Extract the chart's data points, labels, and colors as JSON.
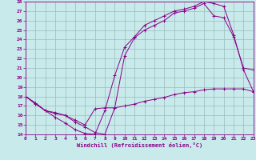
{
  "xlabel": "Windchill (Refroidissement éolien,°C)",
  "bg_color": "#c8eaea",
  "line_color": "#880088",
  "grid_color": "#99bbbb",
  "xmin": 0,
  "xmax": 23,
  "ymin": 14,
  "ymax": 28,
  "xticks": [
    0,
    1,
    2,
    3,
    4,
    5,
    6,
    7,
    8,
    9,
    10,
    11,
    12,
    13,
    14,
    15,
    16,
    17,
    18,
    19,
    20,
    21,
    22,
    23
  ],
  "yticks": [
    14,
    15,
    16,
    17,
    18,
    19,
    20,
    21,
    22,
    23,
    24,
    25,
    26,
    27,
    28
  ],
  "line1_x": [
    0,
    1,
    2,
    3,
    4,
    5,
    6,
    7,
    8,
    9,
    10,
    11,
    12,
    13,
    14,
    15,
    16,
    17,
    18,
    19,
    20,
    21,
    22,
    23
  ],
  "line1_y": [
    18,
    17.3,
    16.5,
    15.8,
    15.2,
    14.5,
    14.1,
    14.0,
    16.5,
    20.2,
    23.2,
    24.3,
    25.5,
    26.0,
    26.5,
    27.0,
    27.2,
    27.5,
    28.0,
    27.8,
    27.5,
    24.5,
    20.8,
    18.5
  ],
  "line2_x": [
    0,
    1,
    2,
    3,
    4,
    5,
    6,
    7,
    8,
    9,
    10,
    11,
    12,
    13,
    14,
    15,
    16,
    17,
    18,
    19,
    20,
    21,
    22,
    23
  ],
  "line2_y": [
    18,
    17.3,
    16.5,
    16.2,
    16.0,
    15.3,
    14.8,
    14.2,
    14.0,
    16.8,
    22.3,
    24.2,
    25.0,
    25.5,
    26.0,
    26.8,
    27.0,
    27.3,
    27.8,
    26.5,
    26.3,
    24.3,
    21.0,
    20.8
  ],
  "line3_x": [
    0,
    1,
    2,
    3,
    4,
    5,
    6,
    7,
    8,
    9,
    10,
    11,
    12,
    13,
    14,
    15,
    16,
    17,
    18,
    19,
    20,
    21,
    22,
    23
  ],
  "line3_y": [
    18,
    17.2,
    16.5,
    16.3,
    16.0,
    15.5,
    15.0,
    16.7,
    16.8,
    16.8,
    17.0,
    17.2,
    17.5,
    17.7,
    17.9,
    18.2,
    18.4,
    18.5,
    18.7,
    18.8,
    18.8,
    18.8,
    18.8,
    18.5
  ]
}
